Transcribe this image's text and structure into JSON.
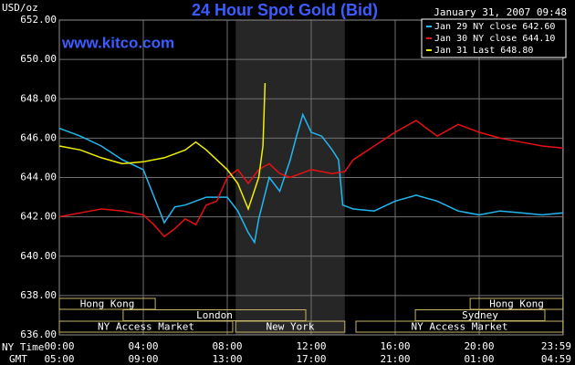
{
  "chart_data": {
    "type": "line",
    "title": "24 Hour Spot Gold (Bid)",
    "timestamp": "January 31, 2007 09:48",
    "ylabel": "USD/oz",
    "watermark": "www.kitco.com",
    "xlabel": "NY Time",
    "x2label": "GMT",
    "xlim": [
      0,
      24
    ],
    "ylim": [
      636,
      652
    ],
    "yticks": [
      {
        "value": 636,
        "label": "636.00"
      },
      {
        "value": 638,
        "label": "638.00"
      },
      {
        "value": 640,
        "label": "640.00"
      },
      {
        "value": 642,
        "label": "642.00"
      },
      {
        "value": 644,
        "label": "644.00"
      },
      {
        "value": 646,
        "label": "646.00"
      },
      {
        "value": 648,
        "label": "648.00"
      },
      {
        "value": 650,
        "label": "650.00"
      },
      {
        "value": 652,
        "label": "652.00"
      }
    ],
    "xticks": [
      {
        "value": 0,
        "label": "00:00"
      },
      {
        "value": 4,
        "label": "04:00"
      },
      {
        "value": 8,
        "label": "08:00"
      },
      {
        "value": 12,
        "label": "12:00"
      },
      {
        "value": 16,
        "label": "16:00"
      },
      {
        "value": 20,
        "label": "20:00"
      },
      {
        "value": 23.983,
        "label": "23:59"
      }
    ],
    "x2ticks": [
      {
        "value": 0,
        "label": "05:00"
      },
      {
        "value": 4,
        "label": "09:00"
      },
      {
        "value": 8,
        "label": "13:00"
      },
      {
        "value": 12,
        "label": "17:00"
      },
      {
        "value": 16,
        "label": "21:00"
      },
      {
        "value": 20,
        "label": "01:00"
      },
      {
        "value": 23.983,
        "label": "04:59"
      }
    ],
    "grid": true,
    "shade": [
      8.4,
      13.6
    ],
    "sessions": [
      {
        "label": "Hong Kong",
        "start": 0,
        "end": 4.57,
        "row": 0
      },
      {
        "label": "Hong Kong",
        "start": 19.57,
        "end": 24,
        "row": 0
      },
      {
        "label": "London",
        "start": 3.04,
        "end": 11.74,
        "row": 1
      },
      {
        "label": "Sydney",
        "start": 16.96,
        "end": 23.13,
        "row": 1
      },
      {
        "label": "NY Access Market",
        "start": 0,
        "end": 8.26,
        "row": 2
      },
      {
        "label": "New York",
        "start": 8.4,
        "end": 13.6,
        "row": 2
      },
      {
        "label": "NY Access Market",
        "start": 14.13,
        "end": 24,
        "row": 2
      }
    ],
    "series": [
      {
        "name": "Jan 29 NY close 642.60",
        "color": "#22b8f0",
        "x": [
          0,
          1,
          2,
          3,
          4,
          5,
          5.5,
          6,
          7,
          8,
          8.5,
          9,
          9.3,
          9.5,
          10,
          10.5,
          11,
          11.3,
          11.6,
          12,
          12.5,
          13,
          13.3,
          13.5,
          14,
          15,
          16,
          17,
          18,
          19,
          20,
          21,
          22,
          23,
          24
        ],
        "values": [
          646.5,
          646.1,
          645.6,
          644.9,
          644.4,
          641.7,
          642.5,
          642.6,
          643.0,
          643.0,
          642.3,
          641.2,
          640.7,
          641.9,
          644.0,
          643.3,
          644.9,
          646.1,
          647.2,
          646.3,
          646.1,
          645.4,
          644.9,
          642.6,
          642.4,
          642.3,
          642.8,
          643.1,
          642.8,
          642.3,
          642.1,
          642.3,
          642.2,
          642.1,
          642.2
        ]
      },
      {
        "name": "Jan 30 NY close 644.10",
        "color": "#e81010",
        "x": [
          0,
          1,
          2,
          3,
          4,
          4.5,
          5,
          5.5,
          6,
          6.5,
          7,
          7.5,
          8,
          8.5,
          9,
          9.5,
          10,
          10.5,
          11,
          11.5,
          12,
          13,
          13.6,
          14,
          15,
          16,
          17,
          18,
          19,
          20,
          21,
          22,
          23,
          24
        ],
        "values": [
          642.0,
          642.2,
          642.4,
          642.3,
          642.1,
          641.6,
          641.0,
          641.4,
          641.9,
          641.6,
          642.6,
          642.8,
          644.0,
          644.4,
          643.7,
          644.4,
          644.7,
          644.2,
          644.0,
          644.2,
          644.4,
          644.2,
          644.3,
          644.9,
          645.6,
          646.3,
          646.9,
          646.1,
          646.7,
          646.3,
          646.0,
          645.8,
          645.6,
          645.5
        ]
      },
      {
        "name": "Jan 31 Last 648.80",
        "color": "#f0f000",
        "x": [
          0,
          1,
          2,
          3,
          4,
          5,
          6,
          6.5,
          7,
          7.5,
          8,
          8.5,
          9,
          9.5,
          9.7,
          9.8
        ],
        "values": [
          645.6,
          645.4,
          645.0,
          644.7,
          644.8,
          645.0,
          645.4,
          645.8,
          645.4,
          644.9,
          644.4,
          643.7,
          642.4,
          644.0,
          645.6,
          648.8
        ]
      }
    ]
  }
}
